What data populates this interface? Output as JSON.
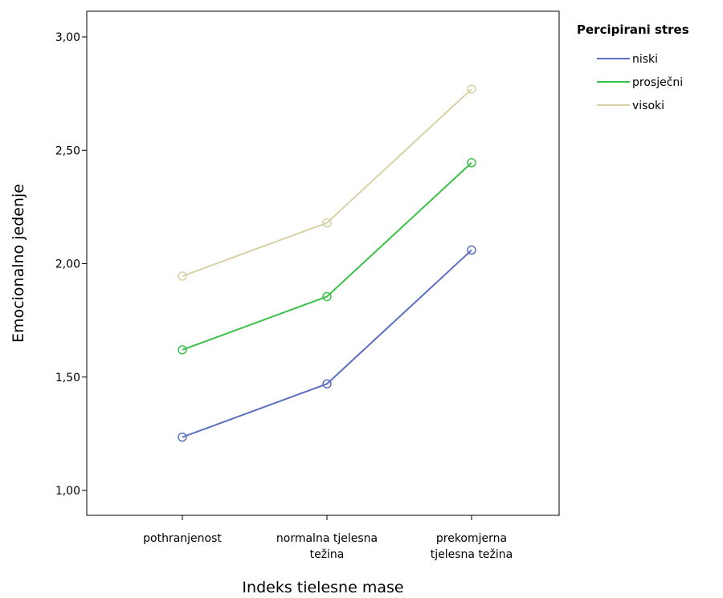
{
  "chart_data": {
    "type": "line",
    "title": "",
    "xlabel": "Indeks tielesne mase",
    "ylabel": "Emocionalno jedenje",
    "categories": [
      [
        "pothranjenost"
      ],
      [
        "normalna tjelesna",
        "težina"
      ],
      [
        "prekomjerna",
        "tjelesna težina"
      ]
    ],
    "ylim": [
      0.9,
      3.1
    ],
    "yticks": [
      1.0,
      1.5,
      2.0,
      2.5,
      3.0
    ],
    "ytick_labels": [
      "1,00",
      "1,50",
      "2,00",
      "2,50",
      "3,00"
    ],
    "grid": false,
    "legend": {
      "title": "Percipirani stres",
      "position": "right"
    },
    "series": [
      {
        "name": "niski",
        "color": "#5b6fbf",
        "values": [
          1.235,
          1.47,
          2.06
        ]
      },
      {
        "name": "prosječni",
        "color": "#3cc04a",
        "values": [
          1.62,
          1.855,
          2.445
        ]
      },
      {
        "name": "visoki",
        "color": "#d8d1a6",
        "values": [
          1.945,
          2.18,
          2.77
        ]
      }
    ]
  }
}
